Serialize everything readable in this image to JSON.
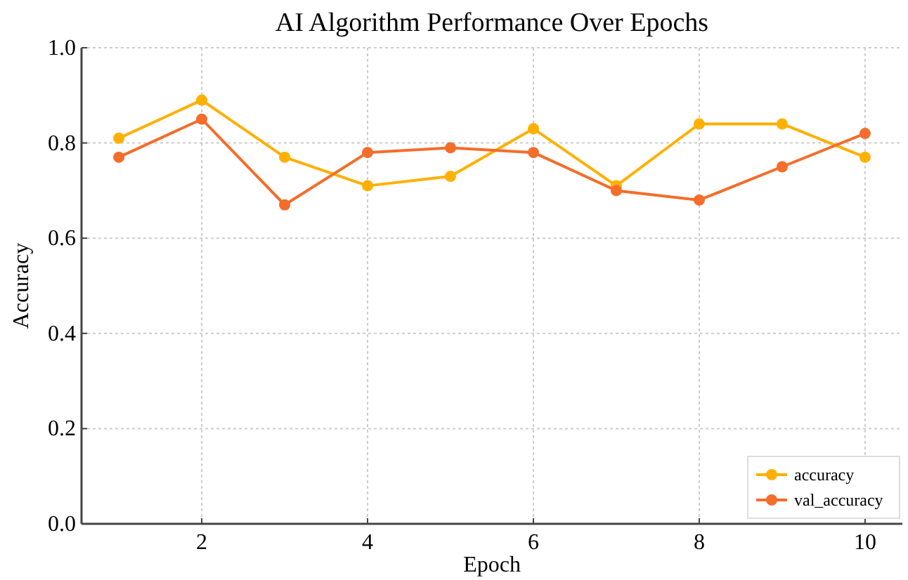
{
  "chart_data": {
    "type": "line",
    "title": "AI Algorithm Performance Over Epochs",
    "xlabel": "Epoch",
    "ylabel": "Accuracy",
    "x": [
      1,
      2,
      3,
      4,
      5,
      6,
      7,
      8,
      9,
      10
    ],
    "series": [
      {
        "name": "accuracy",
        "color": "#ffb000",
        "values": [
          0.81,
          0.89,
          0.77,
          0.71,
          0.73,
          0.83,
          0.71,
          0.84,
          0.84,
          0.77
        ]
      },
      {
        "name": "val_accuracy",
        "color": "#f46d2a",
        "values": [
          0.77,
          0.85,
          0.67,
          0.78,
          0.79,
          0.78,
          0.7,
          0.68,
          0.75,
          0.82
        ]
      }
    ],
    "xlim": [
      0.55,
      10.45
    ],
    "xticks": [
      2,
      4,
      6,
      8,
      10
    ],
    "ylim": [
      0,
      1
    ],
    "yticks": [
      {
        "value": 0,
        "label": "0.0"
      },
      {
        "value": 0.2,
        "label": "0.2"
      },
      {
        "value": 0.4,
        "label": "0.4"
      },
      {
        "value": 0.6,
        "label": "0.6"
      },
      {
        "value": 0.8,
        "label": "0.8"
      },
      {
        "value": 1,
        "label": "1.0"
      }
    ],
    "grid": true,
    "legend": "bottom right",
    "marker": "circle",
    "line_style": "solid"
  }
}
